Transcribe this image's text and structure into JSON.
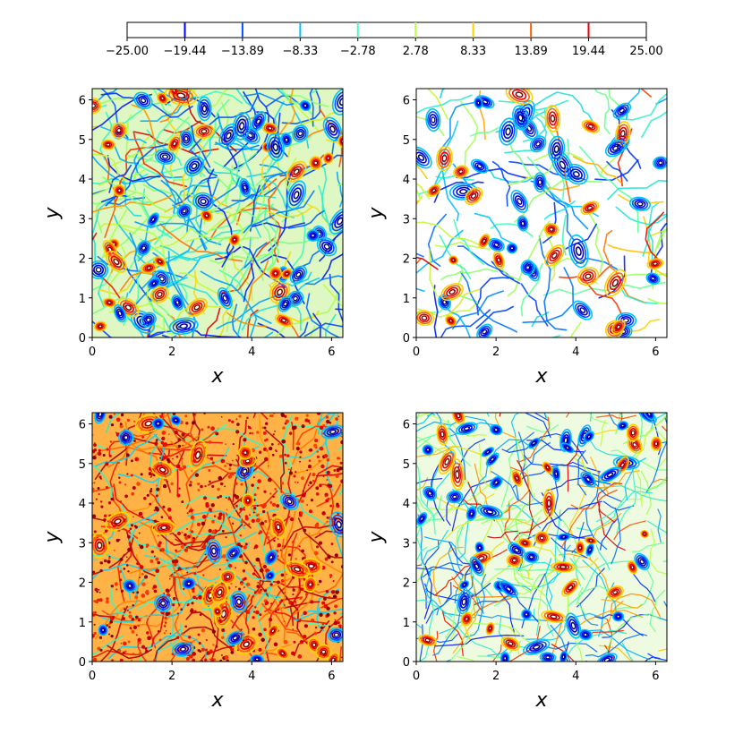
{
  "colorbar": {
    "tick_labels": [
      "−25.00",
      "−19.44",
      "−13.89",
      "−8.33",
      "−2.78",
      "2.78",
      "8.33",
      "13.89",
      "19.44",
      "25.00"
    ],
    "tick_values": [
      -25.0,
      -19.44,
      -13.89,
      -8.33,
      -2.78,
      2.78,
      8.33,
      13.89,
      19.44,
      25.0
    ],
    "level_colors": [
      "#000080",
      "#0000f0",
      "#0050ff",
      "#00c0ff",
      "#40ffb8",
      "#b8ff40",
      "#ffd000",
      "#ff6000",
      "#e80000",
      "#800000"
    ],
    "range": [
      -25.0,
      25.0
    ]
  },
  "chart_data": [
    {
      "type": "contour",
      "panel": "top-left",
      "xlabel": "x",
      "ylabel": "y",
      "xlim": [
        0,
        6.2832
      ],
      "ylim": [
        0,
        6.2832
      ],
      "xticks": [
        0,
        2,
        4,
        6
      ],
      "yticks": [
        0,
        1,
        2,
        3,
        4,
        5,
        6
      ],
      "xtick_labels": [
        "0",
        "2",
        "4",
        "6"
      ],
      "ytick_labels": [
        "0",
        "1",
        "2",
        "3",
        "4",
        "5",
        "6"
      ],
      "value_range": [
        -25.0,
        25.0
      ]
    },
    {
      "type": "contour",
      "panel": "top-right",
      "xlabel": "x",
      "ylabel": "y",
      "xlim": [
        0,
        6.2832
      ],
      "ylim": [
        0,
        6.2832
      ],
      "xticks": [
        0,
        2,
        4,
        6
      ],
      "yticks": [
        0,
        1,
        2,
        3,
        4,
        5,
        6
      ],
      "xtick_labels": [
        "0",
        "2",
        "4",
        "6"
      ],
      "ytick_labels": [
        "0",
        "1",
        "2",
        "3",
        "4",
        "5",
        "6"
      ],
      "value_range": [
        -25.0,
        25.0
      ]
    },
    {
      "type": "contour",
      "panel": "bottom-left",
      "xlabel": "x",
      "ylabel": "y",
      "xlim": [
        0,
        6.2832
      ],
      "ylim": [
        0,
        6.2832
      ],
      "xticks": [
        0,
        2,
        4,
        6
      ],
      "yticks": [
        0,
        1,
        2,
        3,
        4,
        5,
        6
      ],
      "xtick_labels": [
        "0",
        "2",
        "4",
        "6"
      ],
      "ytick_labels": [
        "0",
        "1",
        "2",
        "3",
        "4",
        "5",
        "6"
      ],
      "value_range": [
        -25.0,
        25.0
      ]
    },
    {
      "type": "contour",
      "panel": "bottom-right",
      "xlabel": "x",
      "ylabel": "y",
      "xlim": [
        0,
        6.2832
      ],
      "ylim": [
        0,
        6.2832
      ],
      "xticks": [
        0,
        2,
        4,
        6
      ],
      "yticks": [
        0,
        1,
        2,
        3,
        4,
        5,
        6
      ],
      "xtick_labels": [
        "0",
        "2",
        "4",
        "6"
      ],
      "ytick_labels": [
        "0",
        "1",
        "2",
        "3",
        "4",
        "5",
        "6"
      ],
      "value_range": [
        -25.0,
        25.0
      ]
    }
  ]
}
